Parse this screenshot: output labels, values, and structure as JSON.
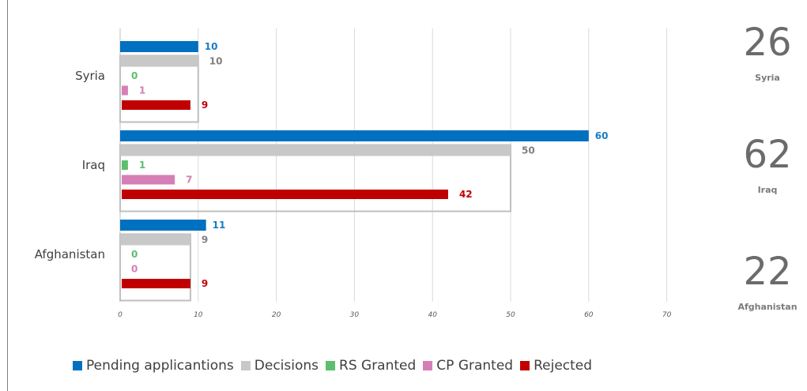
{
  "colors": {
    "pending": "#0070c0",
    "decisions": "#c8c8c8",
    "rs": "#5cbf6e",
    "cp": "#d57fb6",
    "rejected": "#c00000"
  },
  "chart_data": {
    "type": "bar",
    "orientation": "horizontal",
    "categories": [
      "Syria",
      "Iraq",
      "Afghanistan"
    ],
    "series": [
      {
        "name": "Pending applicantions",
        "key": "pending",
        "values": [
          10,
          60,
          11
        ]
      },
      {
        "name": "Decisions",
        "key": "decisions",
        "values": [
          10,
          50,
          9
        ]
      },
      {
        "name": "RS Granted",
        "key": "rs",
        "values": [
          0,
          1,
          0
        ]
      },
      {
        "name": "CP Granted",
        "key": "cp",
        "values": [
          1,
          7,
          0
        ]
      },
      {
        "name": "Rejected",
        "key": "rejected",
        "values": [
          9,
          42,
          9
        ]
      }
    ],
    "xlim": [
      0,
      70
    ],
    "x_ticks": [
      "0",
      "10",
      "20",
      "30",
      "40",
      "50",
      "60",
      "70"
    ],
    "grid": true,
    "legend_position": "bottom"
  },
  "totals": [
    {
      "value": "26",
      "name": "Syria"
    },
    {
      "value": "62",
      "name": "Iraq"
    },
    {
      "value": "22",
      "name": "Afghanistan"
    }
  ]
}
